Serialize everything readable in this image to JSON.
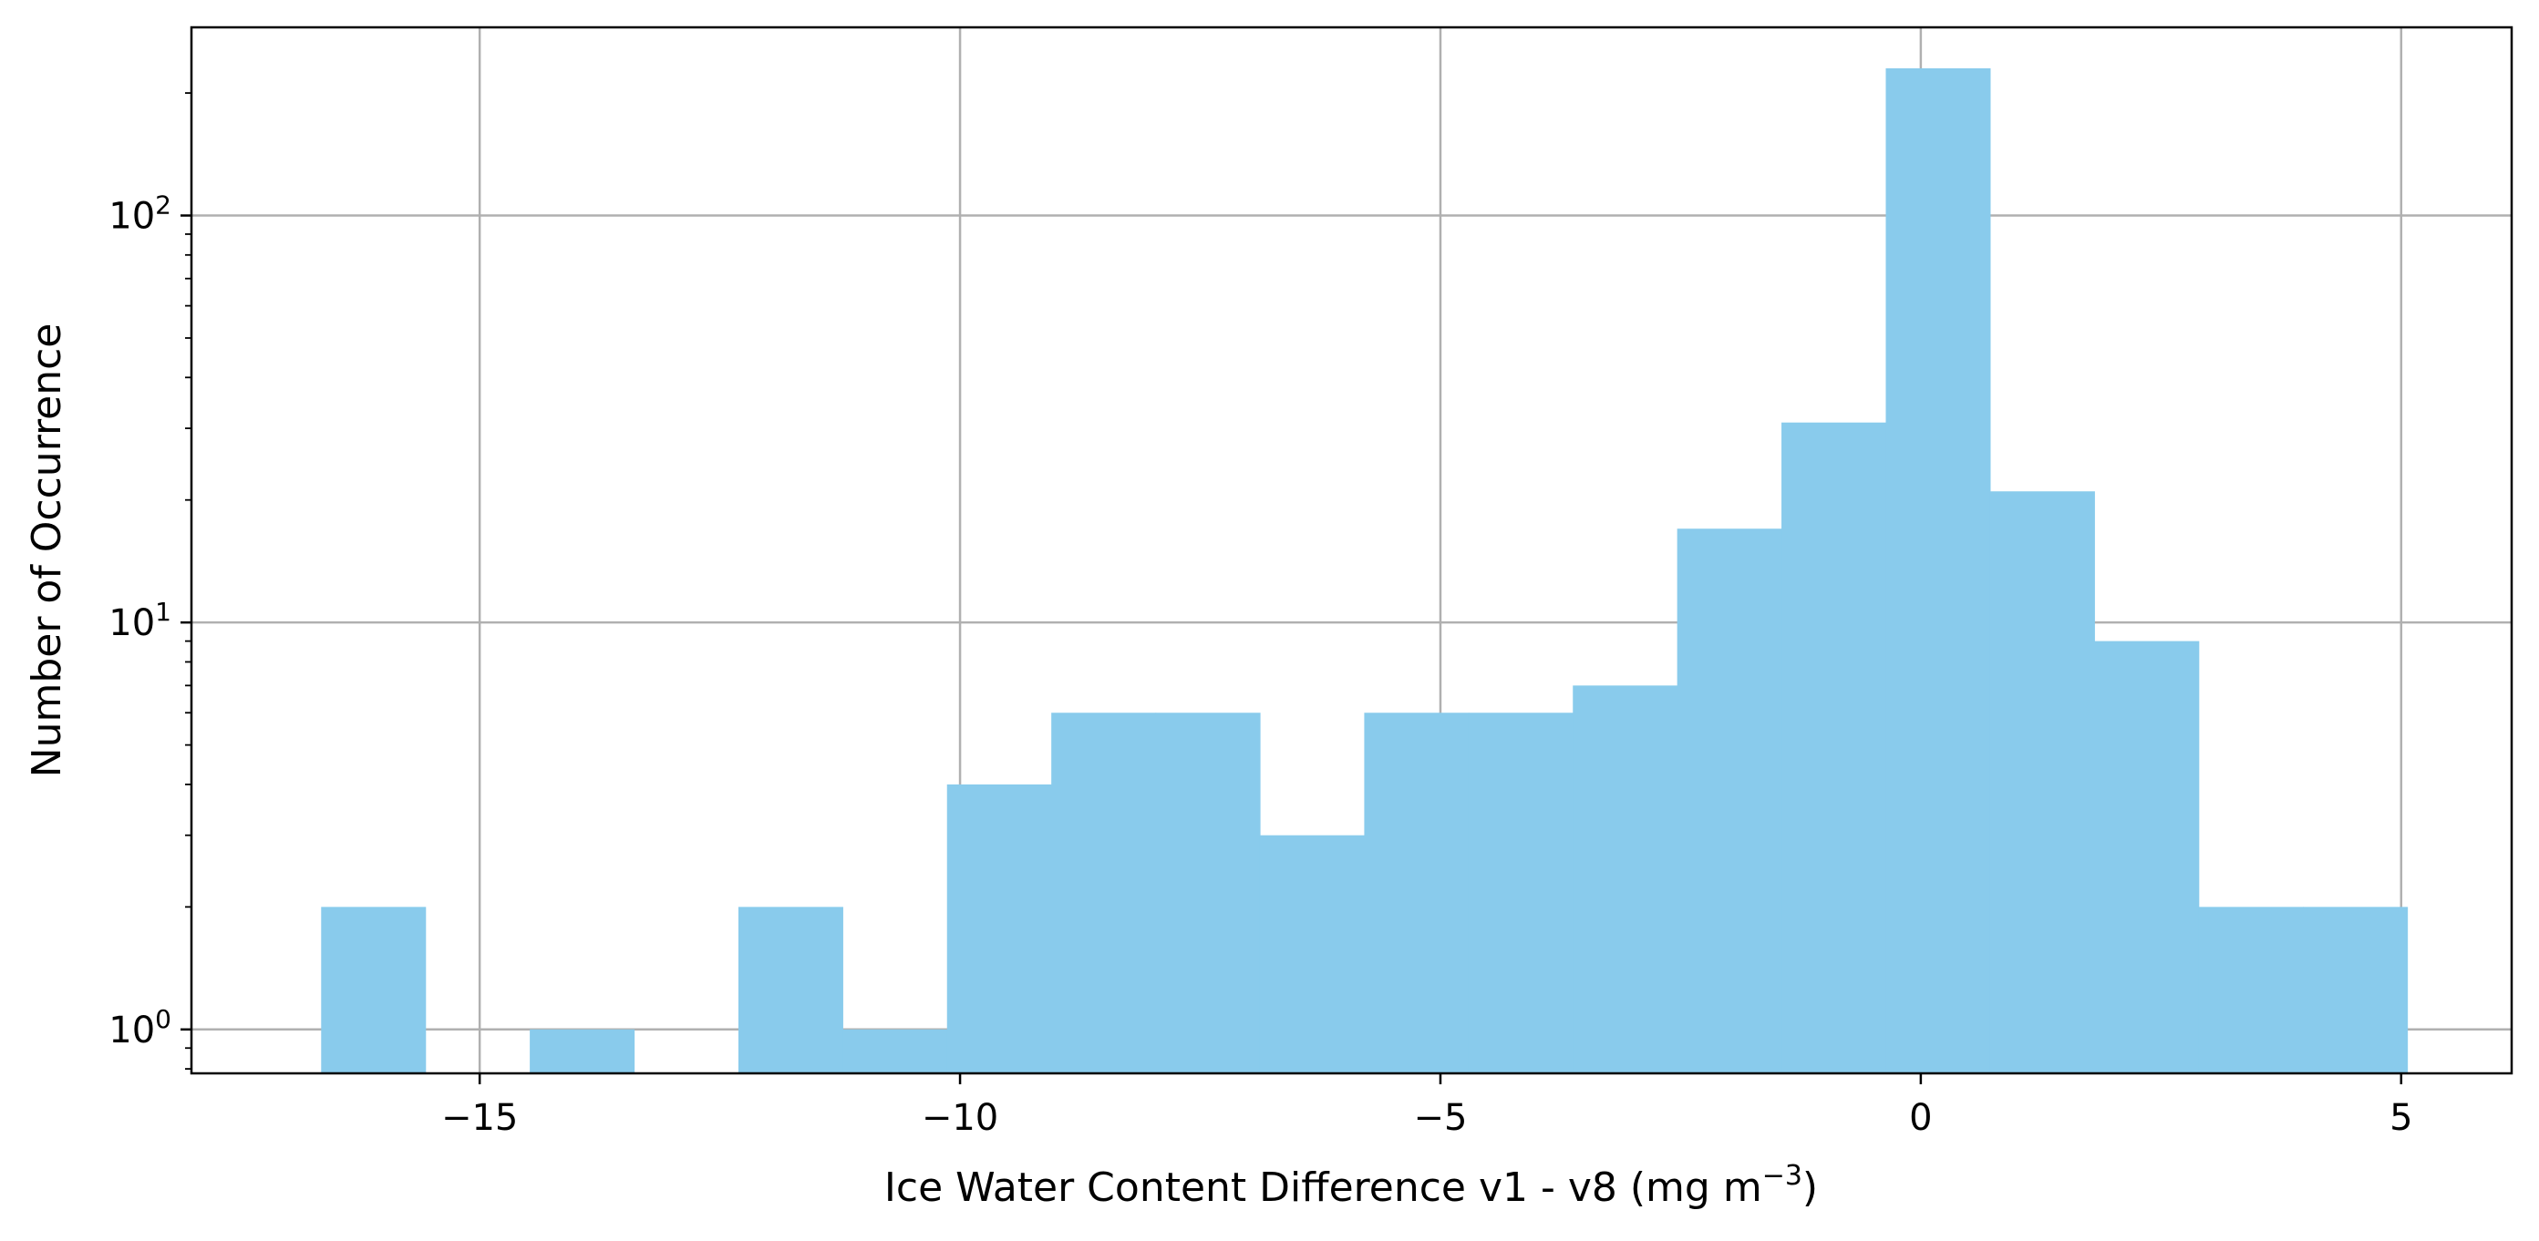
{
  "chart_data": {
    "type": "bar",
    "title": "",
    "xlabel": "Ice Water Content Difference v1 - v8 (mg m",
    "xlabel_superscript": "−3",
    "xlabel_suffix": ")",
    "ylabel": "Number of Occurrence",
    "yscale": "log",
    "xlim": [
      -18.0,
      6.15
    ],
    "ylim": [
      0.78,
      290
    ],
    "grid": true,
    "colors": {
      "bar": "#89CBEC",
      "grid": "#B0B0B0",
      "axis": "#000000"
    },
    "x_ticks": [
      {
        "value": -15,
        "label": "−15"
      },
      {
        "value": -10,
        "label": "−10"
      },
      {
        "value": -5,
        "label": "−5"
      },
      {
        "value": 0,
        "label": "0"
      },
      {
        "value": 5,
        "label": "5"
      }
    ],
    "y_ticks": [
      {
        "value": 1,
        "base": "10",
        "exp": "0"
      },
      {
        "value": 10,
        "base": "10",
        "exp": "1"
      },
      {
        "value": 100,
        "base": "10",
        "exp": "2"
      }
    ],
    "bin_start": -16.65,
    "bin_width": 1.0857,
    "counts": [
      2,
      0,
      1,
      0,
      2,
      1,
      4,
      6,
      6,
      3,
      6,
      6,
      7,
      17,
      31,
      230,
      21,
      9,
      2,
      2
    ]
  }
}
